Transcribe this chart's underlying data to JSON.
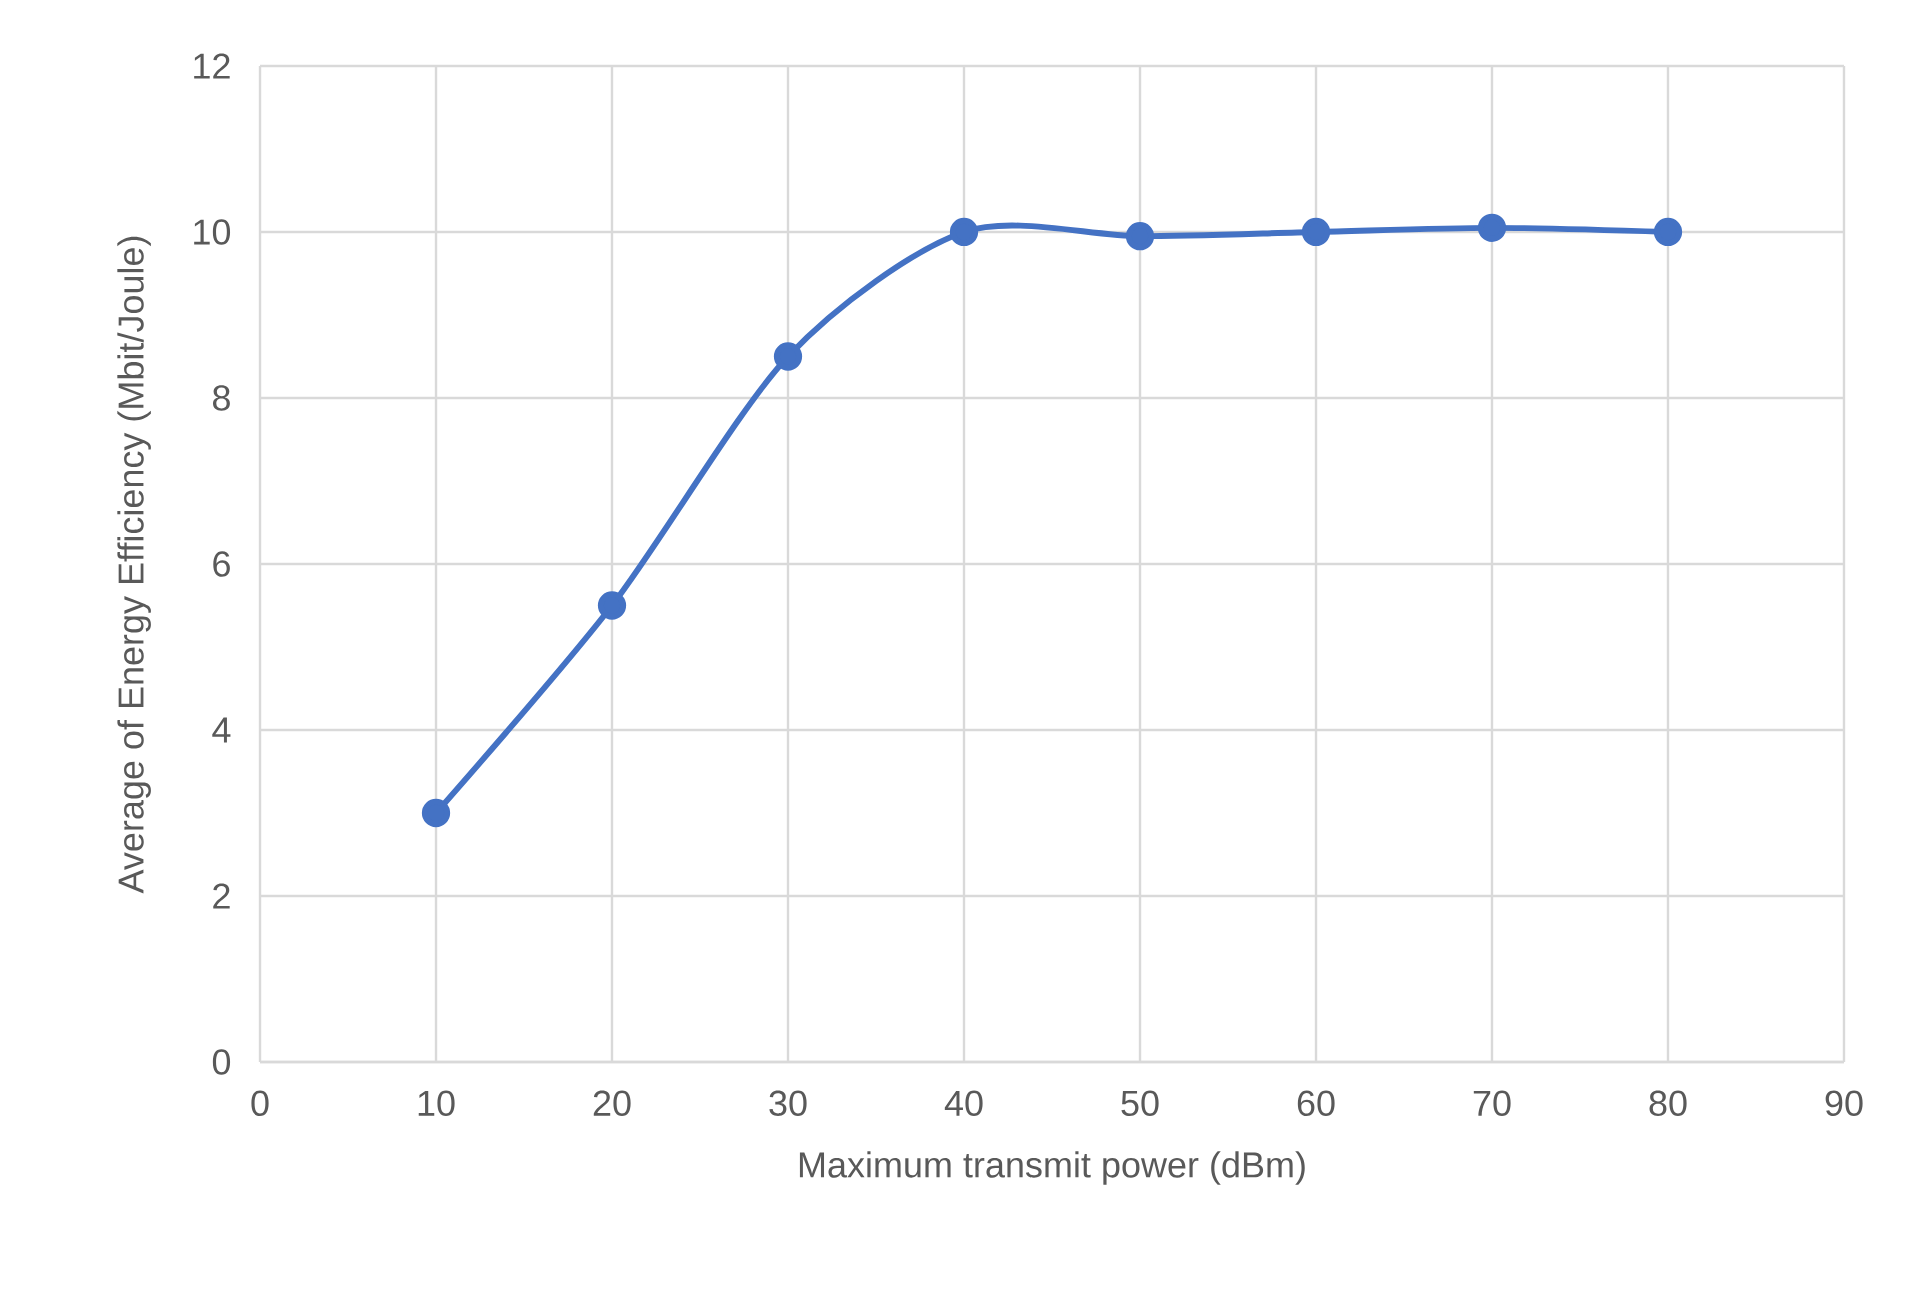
{
  "chart_data": {
    "type": "line",
    "xlabel": "Maximum transmit power (dBm)",
    "ylabel": "Average of Energy Efficiency (Mbit/Joule)",
    "x": [
      10,
      20,
      30,
      40,
      50,
      60,
      70,
      80
    ],
    "series": [
      {
        "color": "#4472c4",
        "values": [
          3,
          5.5,
          8.5,
          10,
          9.95,
          10,
          10.05,
          10
        ]
      }
    ],
    "xlim": [
      0,
      90
    ],
    "xticks": [
      0,
      10,
      20,
      30,
      40,
      50,
      60,
      70,
      80,
      90
    ],
    "ylim": [
      0,
      12
    ],
    "yticks": [
      0,
      2,
      4,
      6,
      8,
      10,
      12
    ],
    "grid": true,
    "marker": "circle",
    "line_style": "solid"
  }
}
